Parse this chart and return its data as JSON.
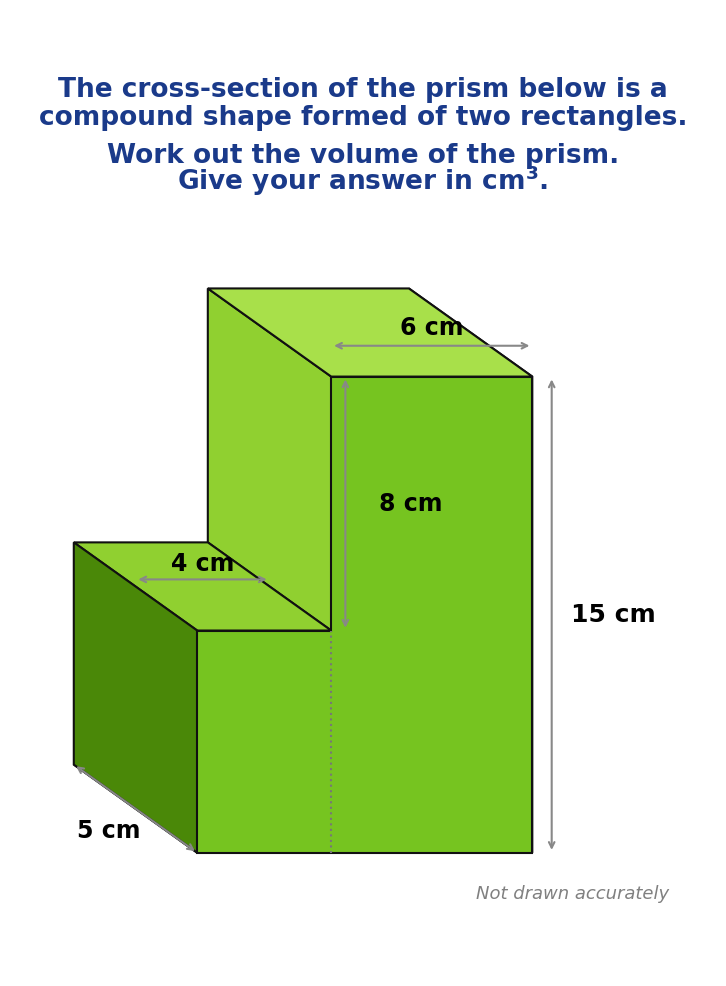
{
  "title_line1": "The cross-section of the prism below is a",
  "title_line2": "compound shape formed of two rectangles.",
  "subtitle_line1": "Work out the volume of the prism.",
  "subtitle_line2": "Give your answer in cm",
  "subtitle_sup": "3",
  "subtitle_dot": ".",
  "note": "Not drawn accurately",
  "title_color": "#1a3a8a",
  "subtitle_color": "#1a3a8a",
  "note_color": "#808080",
  "bg_color": "#ffffff",
  "labels": {
    "top_width": "6 cm",
    "left_width": "4 cm",
    "depth": "5 cm",
    "upper_height": "8 cm",
    "total_height": "15 cm"
  },
  "c_front": "#76c420",
  "c_top": "#a8e04a",
  "c_right": "#5a9a10",
  "c_left": "#4a8808",
  "c_step_top": "#90d030",
  "arrow_color": "#888888",
  "edge_color": "#111111",
  "dash_color": "#777777"
}
